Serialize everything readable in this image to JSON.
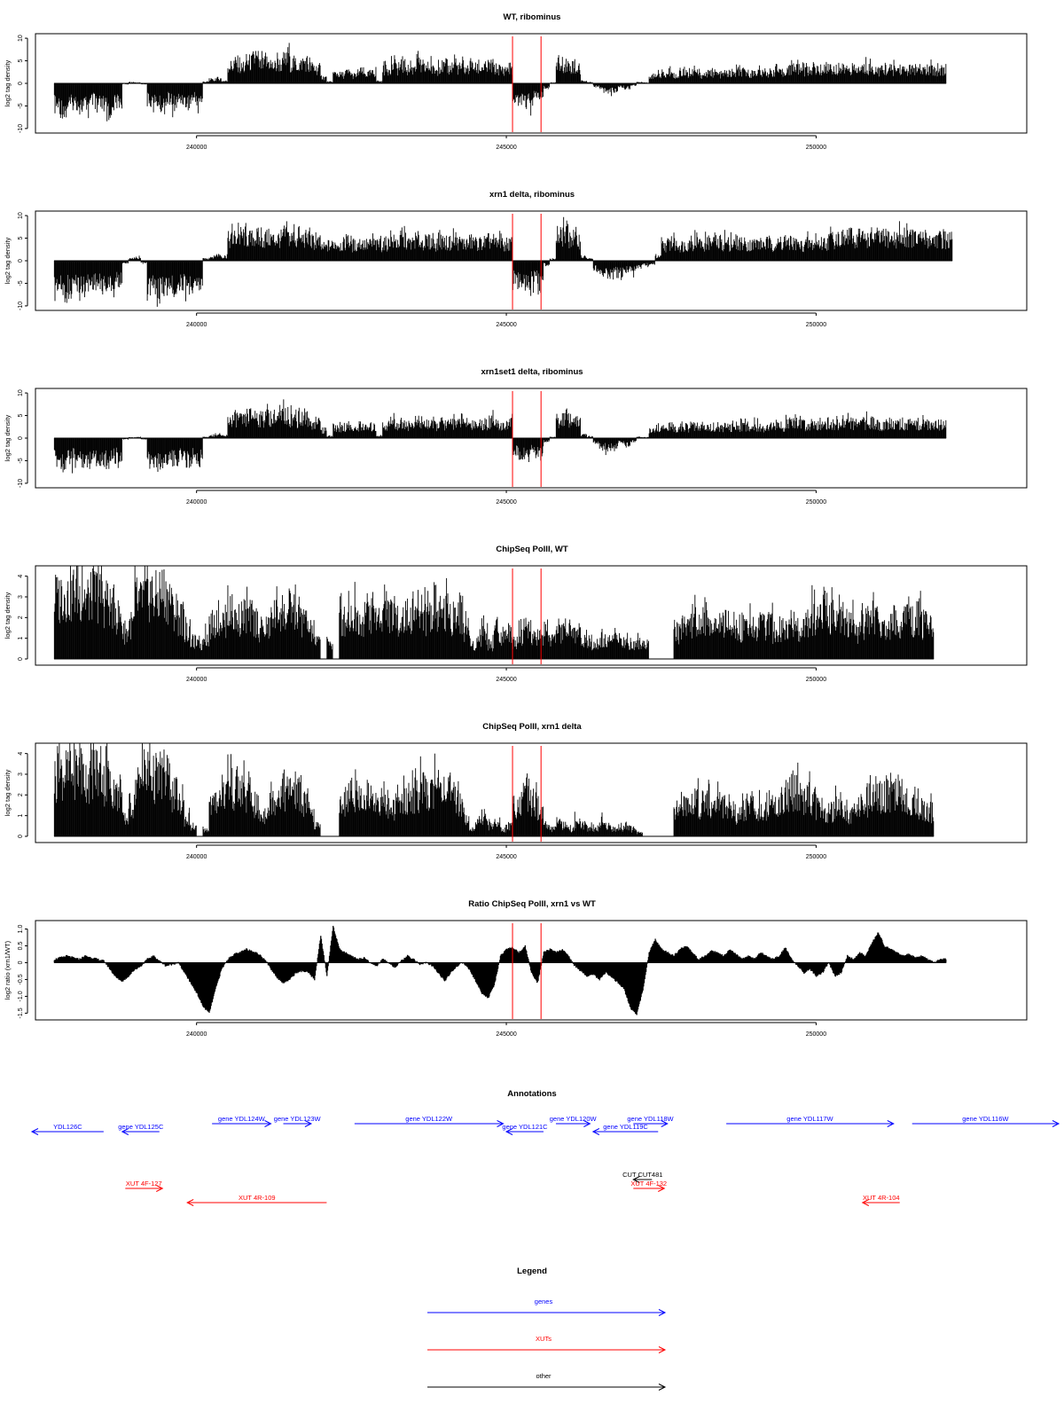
{
  "chart_data": [
    {
      "type": "bar",
      "title": "WT, ribominus",
      "ylabel": "log2 tag density",
      "ylim": [
        -11,
        11
      ],
      "yticks": [
        10,
        5,
        0,
        -5,
        -10
      ],
      "xlim": [
        237400,
        253400
      ],
      "xticks": [
        240000,
        245000,
        250000
      ],
      "xtick_labels": [
        "240000",
        "245000",
        "250000"
      ],
      "markers_x": [
        245100,
        245560
      ],
      "x_start": 237700,
      "x_step": 100,
      "values": [
        -5.8,
        -6.5,
        -5.5,
        -5.0,
        -6.0,
        -5.5,
        -4.5,
        -5.8,
        -6.2,
        -5.2,
        -4.8,
        -0.2,
        0.3,
        0.2,
        -0.2,
        -4.5,
        -5.0,
        -5.8,
        -4.2,
        -5.2,
        -4.0,
        -5.0,
        -3.8,
        -4.5,
        0.4,
        0.8,
        1.2,
        0.6,
        4.5,
        5.2,
        4.0,
        5.5,
        6.2,
        4.8,
        5.5,
        4.5,
        5.0,
        6.0,
        5.2,
        4.8,
        5.5,
        4.2,
        3.8,
        1.5,
        0.4,
        2.5,
        2.2,
        2.8,
        2.0,
        3.0,
        2.4,
        2.6,
        0.5,
        3.5,
        4.2,
        3.8,
        4.5,
        3.6,
        4.8,
        3.9,
        4.2,
        3.5,
        4.4,
        3.8,
        4.5,
        4.0,
        3.7,
        4.3,
        3.9,
        4.1,
        4.6,
        3.8,
        3.5,
        4.0,
        -3.8,
        -4.2,
        -4.8,
        -3.5,
        -4.0,
        -1.0,
        0.2,
        4.2,
        5.0,
        4.5,
        3.8,
        0.6,
        0.3,
        -0.8,
        -1.5,
        -2.0,
        -1.5,
        -0.8,
        -1.2,
        -0.5,
        0.3,
        0.2,
        1.5,
        2.5,
        2.2,
        2.8,
        2.0,
        2.6,
        2.4,
        2.8,
        2.2,
        2.5,
        2.7,
        2.3,
        2.6,
        2.4,
        2.8,
        2.9,
        2.6,
        3.0,
        2.5,
        2.8,
        3.2,
        2.7,
        3.5,
        3.8,
        3.6,
        3.2,
        4.0,
        3.5,
        3.8,
        3.6,
        3.4,
        3.7,
        3.9,
        3.5,
        3.8,
        4.0,
        3.6,
        3.3,
        3.7,
        3.5,
        3.8,
        3.4,
        3.6,
        3.2,
        3.5,
        3.6,
        3.4,
        3.7
      ],
      "color": "#000000",
      "marker_color": "#ff0000"
    },
    {
      "type": "bar",
      "title": "xrn1 delta, ribominus",
      "ylabel": "log2 tag density",
      "ylim": [
        -11,
        11
      ],
      "yticks": [
        10,
        5,
        0,
        -5,
        -10
      ],
      "xlim": [
        237400,
        253400
      ],
      "xticks": [
        240000,
        245000,
        250000
      ],
      "xtick_labels": [
        "240000",
        "245000",
        "250000"
      ],
      "markers_x": [
        245100,
        245560
      ],
      "x_start": 237700,
      "x_step": 100,
      "values": [
        -6.2,
        -7.0,
        -6.5,
        -5.8,
        -6.8,
        -6.0,
        -5.5,
        -6.3,
        -6.6,
        -5.8,
        -5.2,
        -0.5,
        0.5,
        0.8,
        -0.6,
        -6.5,
        -7.2,
        -6.8,
        -6.0,
        -7.0,
        -5.8,
        -6.5,
        -5.5,
        -6.2,
        0.5,
        1.0,
        1.5,
        1.0,
        5.5,
        6.0,
        6.5,
        5.8,
        6.2,
        5.5,
        6.0,
        5.6,
        5.8,
        6.3,
        5.9,
        5.2,
        5.8,
        5.0,
        4.8,
        3.5,
        4.0,
        4.5,
        4.2,
        4.8,
        4.0,
        4.6,
        4.2,
        4.4,
        4.0,
        4.5,
        5.0,
        4.8,
        5.2,
        4.6,
        5.5,
        4.9,
        5.0,
        4.5,
        5.2,
        4.7,
        5.0,
        4.8,
        4.5,
        5.0,
        4.6,
        4.8,
        5.2,
        4.5,
        4.2,
        4.5,
        -4.5,
        -5.0,
        -5.8,
        -4.8,
        -5.2,
        -1.0,
        0.4,
        5.8,
        6.5,
        6.0,
        5.5,
        1.0,
        0.5,
        -2.0,
        -3.0,
        -3.5,
        -2.8,
        -3.2,
        -2.5,
        -2.8,
        -1.5,
        -1.0,
        -0.8,
        1.0,
        4.0,
        4.5,
        4.2,
        4.0,
        4.4,
        4.6,
        4.2,
        4.5,
        4.8,
        4.3,
        4.6,
        4.4,
        4.8,
        4.5,
        4.2,
        4.6,
        4.4,
        4.7,
        4.3,
        4.5,
        4.2,
        4.6,
        4.0,
        4.5,
        4.3,
        4.6,
        4.8,
        5.5,
        6.0,
        5.8,
        6.2,
        5.6,
        6.0,
        5.8,
        6.3,
        5.9,
        6.1,
        5.7,
        6.0,
        5.8,
        6.2,
        5.6,
        6.0,
        5.5,
        5.8,
        5.6,
        5.4
      ],
      "color": "#000000",
      "marker_color": "#ff0000"
    },
    {
      "type": "bar",
      "title": "xrn1set1 delta, ribominus",
      "ylabel": "log2 tag density",
      "ylim": [
        -11,
        11
      ],
      "yticks": [
        10,
        5,
        0,
        -5,
        -10
      ],
      "xlim": [
        237400,
        253400
      ],
      "xticks": [
        240000,
        245000,
        250000
      ],
      "xtick_labels": [
        "240000",
        "245000",
        "250000"
      ],
      "markers_x": [
        245100,
        245560
      ],
      "x_start": 237700,
      "x_step": 100,
      "values": [
        -5.5,
        -6.0,
        -5.2,
        -4.8,
        -5.6,
        -5.0,
        -4.2,
        -5.4,
        -5.8,
        -4.9,
        -4.5,
        -0.3,
        0.2,
        0.3,
        -0.3,
        -5.0,
        -5.8,
        -6.2,
        -5.0,
        -5.8,
        -4.5,
        -5.5,
        -4.2,
        -5.0,
        0.3,
        0.6,
        1.0,
        0.5,
        4.8,
        5.2,
        4.6,
        5.8,
        6.0,
        5.0,
        5.4,
        4.6,
        5.2,
        5.8,
        5.0,
        4.6,
        5.2,
        4.0,
        3.5,
        2.0,
        0.5,
        2.8,
        2.4,
        3.0,
        2.2,
        3.2,
        2.6,
        2.8,
        0.6,
        3.2,
        3.8,
        3.5,
        4.0,
        3.4,
        4.2,
        3.6,
        3.8,
        3.2,
        4.0,
        3.5,
        4.1,
        3.7,
        3.4,
        3.9,
        3.6,
        3.8,
        4.2,
        3.5,
        3.2,
        3.7,
        -3.5,
        -4.0,
        -4.5,
        -3.2,
        -3.8,
        -0.8,
        0.3,
        4.5,
        5.5,
        5.0,
        4.2,
        0.8,
        0.4,
        -1.2,
        -2.0,
        -2.5,
        -2.0,
        -1.2,
        -1.6,
        -0.8,
        0.3,
        0.2,
        1.8,
        2.8,
        2.5,
        3.0,
        2.4,
        2.8,
        2.6,
        3.0,
        2.5,
        2.8,
        3.0,
        2.6,
        2.9,
        2.7,
        3.0,
        3.1,
        2.8,
        3.2,
        2.7,
        3.0,
        3.4,
        2.9,
        3.6,
        3.9,
        3.7,
        3.3,
        4.1,
        3.6,
        3.9,
        3.7,
        3.5,
        3.8,
        4.0,
        3.6,
        3.9,
        4.1,
        3.7,
        3.4,
        3.8,
        3.6,
        3.9,
        3.5,
        3.7,
        3.3,
        3.6,
        3.7,
        3.5,
        3.8
      ],
      "color": "#000000",
      "marker_color": "#ff0000"
    },
    {
      "type": "bar",
      "title": "ChipSeq PolII, WT",
      "ylabel": "log2 tag density",
      "ylim": [
        -0.3,
        4.5
      ],
      "yticks": [
        4,
        3,
        2,
        1,
        0
      ],
      "xlim": [
        237400,
        253400
      ],
      "xticks": [
        240000,
        245000,
        250000
      ],
      "xtick_labels": [
        "240000",
        "245000",
        "250000"
      ],
      "markers_x": [
        245100,
        245560
      ],
      "x_start": 237700,
      "x_step": 100,
      "values": [
        3.5,
        3.8,
        3.6,
        4.0,
        3.7,
        3.5,
        3.9,
        3.6,
        3.2,
        3.0,
        2.5,
        1.5,
        2.0,
        3.2,
        3.6,
        3.8,
        3.5,
        3.9,
        3.6,
        2.8,
        2.4,
        1.6,
        1.0,
        0.8,
        1.2,
        2.0,
        2.4,
        2.2,
        2.6,
        2.3,
        2.5,
        2.4,
        2.2,
        1.6,
        1.8,
        2.6,
        2.8,
        2.5,
        2.9,
        2.6,
        2.2,
        1.6,
        1.0,
        0.0,
        0.9,
        0.0,
        2.2,
        2.4,
        2.6,
        2.3,
        2.8,
        2.5,
        2.4,
        2.7,
        2.6,
        2.2,
        2.4,
        2.5,
        2.8,
        2.6,
        2.4,
        2.5,
        2.9,
        2.7,
        2.4,
        2.6,
        1.8,
        0.8,
        1.0,
        1.5,
        0.8,
        1.6,
        1.2,
        1.5,
        1.0,
        1.4,
        1.6,
        1.2,
        1.3,
        1.6,
        1.0,
        1.4,
        1.8,
        1.6,
        1.5,
        1.2,
        0.9,
        1.0,
        1.0,
        0.9,
        1.2,
        1.0,
        0.9,
        0.8,
        1.0,
        0.9,
        0.0,
        0.0,
        0.0,
        0.0,
        1.5,
        2.0,
        1.8,
        2.2,
        1.9,
        2.0,
        1.8,
        2.1,
        2.0,
        1.8,
        1.6,
        1.9,
        2.0,
        1.7,
        1.8,
        2.0,
        1.6,
        1.8,
        2.0,
        2.2,
        1.8,
        2.0,
        2.4,
        2.6,
        2.8,
        2.5,
        2.6,
        2.4,
        2.0,
        1.6,
        2.0,
        2.2,
        2.4,
        2.0,
        1.8,
        2.2,
        2.0,
        2.5,
        2.2,
        2.4,
        2.0,
        1.8
      ],
      "color": "#000000",
      "marker_color": "#ff0000"
    },
    {
      "type": "bar",
      "title": "ChipSeq PolII, xrn1 delta",
      "ylabel": "log2 tag density",
      "ylim": [
        -0.3,
        4.5
      ],
      "yticks": [
        4,
        3,
        2,
        1,
        0
      ],
      "xlim": [
        237400,
        253400
      ],
      "xticks": [
        240000,
        245000,
        250000
      ],
      "xtick_labels": [
        "240000",
        "245000",
        "250000"
      ],
      "markers_x": [
        245100,
        245560
      ],
      "x_start": 237700,
      "x_step": 100,
      "values": [
        3.4,
        3.7,
        3.5,
        3.9,
        3.6,
        3.4,
        3.8,
        3.5,
        3.1,
        2.8,
        2.2,
        1.0,
        1.8,
        3.0,
        3.4,
        3.6,
        3.3,
        3.6,
        3.2,
        2.4,
        1.8,
        1.0,
        0.5,
        0.0,
        0.4,
        1.8,
        2.2,
        2.5,
        2.8,
        2.4,
        2.6,
        2.2,
        1.8,
        1.2,
        1.6,
        2.2,
        2.6,
        2.4,
        2.8,
        2.5,
        2.0,
        1.2,
        0.6,
        0.0,
        0.0,
        0.0,
        2.0,
        2.3,
        2.5,
        2.2,
        2.4,
        2.2,
        2.0,
        1.8,
        1.6,
        1.8,
        2.0,
        2.2,
        2.4,
        2.6,
        2.5,
        2.8,
        3.0,
        2.6,
        2.2,
        2.0,
        1.2,
        0.4,
        0.8,
        1.2,
        0.6,
        0.8,
        0.4,
        0.6,
        1.8,
        2.2,
        2.6,
        2.0,
        1.4,
        0.6,
        0.4,
        0.8,
        0.6,
        0.4,
        0.8,
        0.6,
        0.5,
        0.4,
        0.8,
        0.6,
        0.4,
        0.5,
        0.6,
        0.4,
        0.2,
        0.0,
        0.0,
        0.0,
        0.0,
        0.0,
        1.2,
        1.8,
        1.6,
        2.0,
        1.8,
        1.9,
        1.6,
        1.8,
        1.7,
        1.4,
        1.2,
        1.6,
        1.8,
        1.5,
        1.6,
        2.0,
        1.8,
        2.2,
        2.4,
        2.6,
        2.4,
        2.2,
        2.0,
        1.6,
        1.2,
        1.4,
        1.8,
        1.6,
        1.2,
        1.4,
        1.8,
        2.0,
        2.2,
        2.4,
        2.5,
        2.6,
        2.4,
        2.2,
        2.0,
        1.8,
        1.6,
        1.4
      ],
      "color": "#000000",
      "marker_color": "#ff0000"
    },
    {
      "type": "area",
      "title": "Ratio ChipSeq PolII, xrn1 vs WT",
      "ylabel": "log2 ratio (xrn1/WT)",
      "ylim": [
        -1.7,
        1.25
      ],
      "yticks": [
        1.0,
        0.5,
        0,
        -0.5,
        -1.0,
        -1.5
      ],
      "ytick_labels": [
        "1.0",
        "0.5",
        "0",
        "-0.5",
        "-1.0",
        "-1.5"
      ],
      "xlim": [
        237400,
        253400
      ],
      "xticks": [
        240000,
        245000,
        250000
      ],
      "xtick_labels": [
        "240000",
        "245000",
        "250000"
      ],
      "markers_x": [
        245100,
        245560
      ],
      "x_start": 237700,
      "x_step": 100,
      "values": [
        0.1,
        0.15,
        0.2,
        0.15,
        0.1,
        0.2,
        0.15,
        0.1,
        0.05,
        -0.2,
        -0.45,
        -0.55,
        -0.4,
        -0.2,
        -0.1,
        0.1,
        0.2,
        0.05,
        -0.1,
        -0.05,
        0.0,
        -0.3,
        -0.6,
        -0.9,
        -1.3,
        -1.5,
        -0.8,
        -0.2,
        0.1,
        0.25,
        0.3,
        0.4,
        0.35,
        0.25,
        0.1,
        -0.2,
        -0.45,
        -0.6,
        -0.5,
        -0.3,
        -0.25,
        -0.3,
        -0.5,
        0.8,
        -0.4,
        1.1,
        0.4,
        0.3,
        0.2,
        0.1,
        0.15,
        0.0,
        -0.1,
        0.1,
        0.0,
        -0.15,
        0.05,
        0.2,
        0.1,
        -0.05,
        0.0,
        -0.1,
        -0.3,
        -0.55,
        -0.3,
        -0.1,
        0.0,
        -0.2,
        -0.55,
        -0.9,
        -1.05,
        -0.7,
        0.2,
        0.4,
        0.45,
        0.3,
        0.5,
        -0.3,
        -0.6,
        0.3,
        0.4,
        0.3,
        0.4,
        0.2,
        -0.1,
        -0.25,
        -0.4,
        -0.35,
        -0.5,
        -0.3,
        -0.45,
        -0.6,
        -0.8,
        -1.35,
        -1.55,
        -0.8,
        0.3,
        0.7,
        0.4,
        0.3,
        0.2,
        0.4,
        0.5,
        0.3,
        0.1,
        0.2,
        0.35,
        0.3,
        0.2,
        0.4,
        0.25,
        0.1,
        0.2,
        0.1,
        0.3,
        0.2,
        0.1,
        0.2,
        0.45,
        0.1,
        -0.1,
        -0.3,
        -0.2,
        -0.4,
        -0.3,
        0.0,
        -0.4,
        -0.3,
        0.2,
        0.1,
        0.3,
        0.2,
        0.6,
        0.9,
        0.5,
        0.4,
        0.3,
        0.2,
        0.25,
        0.15,
        0.2,
        0.1,
        0.0,
        0.1
      ],
      "color": "#000000",
      "marker_color": "#ff0000"
    }
  ],
  "annotations": {
    "title": "Annotations",
    "features": [
      {
        "label": "YDL126C",
        "kind": "gene",
        "start": 236000,
        "end": 238500,
        "strand": "-",
        "row": 0
      },
      {
        "label": "gene YDL125C",
        "kind": "gene",
        "start": 238800,
        "end": 239400,
        "strand": "-",
        "row": 0
      },
      {
        "label": "gene YDL124W",
        "kind": "gene",
        "start": 240250,
        "end": 241200,
        "strand": "+",
        "row": 1
      },
      {
        "label": "gene YDL123W",
        "kind": "gene",
        "start": 241400,
        "end": 241850,
        "strand": "+",
        "row": 1
      },
      {
        "label": "gene YDL122W",
        "kind": "gene",
        "start": 242550,
        "end": 244950,
        "strand": "+",
        "row": 1
      },
      {
        "label": "gene YDL121C",
        "kind": "gene",
        "start": 245000,
        "end": 245600,
        "strand": "-",
        "row": 0
      },
      {
        "label": "gene YDL120W",
        "kind": "gene",
        "start": 245800,
        "end": 246350,
        "strand": "+",
        "row": 1
      },
      {
        "label": "gene YDL119C",
        "kind": "gene",
        "start": 246400,
        "end": 247450,
        "strand": "-",
        "row": 0
      },
      {
        "label": "gene YDL118W",
        "kind": "gene",
        "start": 247050,
        "end": 247600,
        "strand": "+",
        "row": 1
      },
      {
        "label": "gene YDL117W",
        "kind": "gene",
        "start": 248550,
        "end": 251250,
        "strand": "+",
        "row": 1
      },
      {
        "label": "gene YDL116W",
        "kind": "gene",
        "start": 251550,
        "end": 254500,
        "strand": "+",
        "row": 1
      },
      {
        "label": "CUT CUT481",
        "kind": "other",
        "start": 247050,
        "end": 247350,
        "strand": "-",
        "row": 4
      },
      {
        "label": "XUT 4F-127",
        "kind": "xut",
        "start": 238850,
        "end": 239450,
        "strand": "+",
        "row": 5
      },
      {
        "label": "XUT 4F-132",
        "kind": "xut",
        "start": 247050,
        "end": 247550,
        "strand": "+",
        "row": 5
      },
      {
        "label": "XUT 4R-109",
        "kind": "xut",
        "start": 239850,
        "end": 242100,
        "strand": "-",
        "row": 6
      },
      {
        "label": "XUT 4R-104",
        "kind": "xut",
        "start": 250750,
        "end": 251350,
        "strand": "-",
        "row": 6
      }
    ]
  },
  "legend": {
    "title": "Legend",
    "items": [
      {
        "label": "genes",
        "color": "#0000ff"
      },
      {
        "label": "XUTs",
        "color": "#ff0000"
      },
      {
        "label": "other",
        "color": "#000000"
      }
    ]
  },
  "colors": {
    "gene": "#0000ff",
    "xut": "#ff0000",
    "other": "#000000",
    "data": "#000000",
    "marker": "#ff0000"
  }
}
